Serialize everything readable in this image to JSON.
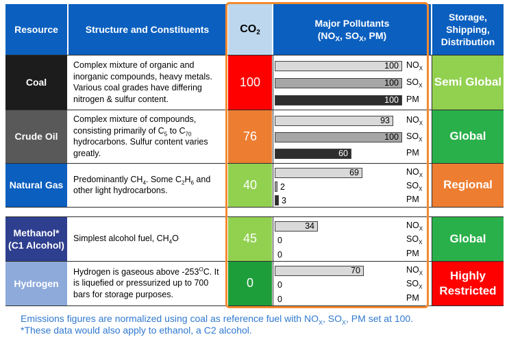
{
  "colors": {
    "header_bg": "#0b5fbf",
    "co2_header_bg": "#bdd7ee",
    "highlight_border": "#f28a30",
    "footnote": "#2f78d0"
  },
  "headers": {
    "resource": "Resource",
    "structure": "Structure and Constituents",
    "co2_main": "CO",
    "co2_sub": "2",
    "pollutants_line1": "Major Pollutants",
    "pollutants_line2_a": "(NO",
    "pollutants_line2_b": ", SO",
    "pollutants_line2_c": ", PM)",
    "pollutants_sub": "X",
    "storage": "Storage, Shipping, Distribution"
  },
  "pollutant_labels": {
    "nox": "NO",
    "sox": "SO",
    "pm": "PM",
    "sub": "X"
  },
  "rows": [
    {
      "resource": "Coal",
      "resource_color": "#1c1c1c",
      "co2": "100",
      "co2_color": "#ff0000",
      "desc": "Complex mixture of organic and inorganic compounds, heavy metals. Various coal grades have differing nitrogen & sulfur content.",
      "nox": 100,
      "sox": 100,
      "pm": 100,
      "storage": "Semi Global",
      "storage_color": "#92d050"
    },
    {
      "resource": "Crude Oil",
      "resource_color": "#595959",
      "co2": "76",
      "co2_color": "#ed7d31",
      "desc_a": "Complex mixture of compounds, consisting primarily of C",
      "desc_sub1": "5",
      "desc_b": " to C",
      "desc_sub2": "70",
      "desc_c": " hydrocarbons. Sulfur content varies greatly.",
      "nox": 93,
      "sox": 100,
      "pm": 60,
      "storage": "Global",
      "storage_color": "#2ab04a"
    },
    {
      "resource": "Natural Gas",
      "resource_color": "#0b5fbf",
      "co2": "40",
      "co2_color": "#92d050",
      "desc_a": "Predominantly CH",
      "desc_sub1": "4",
      "desc_b": ". Some C",
      "desc_sub2": "2",
      "desc_c": "H",
      "desc_sub3": "6",
      "desc_d": " and other light hydrocarbons.",
      "nox": 69,
      "sox": 2,
      "pm": 3,
      "storage": "Regional",
      "storage_color": "#ed7d31"
    },
    {
      "resource": "Methanol* (C1 Alcohol)",
      "resource_color": "#2f3f8f",
      "co2": "45",
      "co2_color": "#92d050",
      "desc_a": "Simplest alcohol fuel, CH",
      "desc_sub1": "4",
      "desc_b": "O",
      "nox": 34,
      "sox": 0,
      "pm": 0,
      "storage": "Global",
      "storage_color": "#2ab04a"
    },
    {
      "resource": "Hydrogen",
      "resource_color": "#8eaadb",
      "co2": "0",
      "co2_color": "#1e9e3a",
      "desc_a": "Hydrogen is gaseous above -253",
      "desc_sup": "O",
      "desc_b": "C. It is liquefied or pressurized up to 700 bars for storage purposes.",
      "nox": 70,
      "sox": 0,
      "pm": 0,
      "storage": "Highly Restricted",
      "storage_color": "#ff0000"
    }
  ],
  "footnote": {
    "line1_a": "Emissions figures are normalized using coal as reference fuel with NO",
    "line1_sub1": "X",
    "line1_b": ", SO",
    "line1_sub2": "X",
    "line1_c": ", PM set at 100.",
    "line2": "*These data would also apply to ethanol, a C2 alcohol."
  }
}
